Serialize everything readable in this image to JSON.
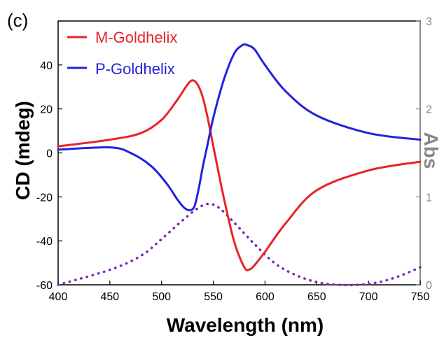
{
  "panel_label": "(c)",
  "chart_data": {
    "type": "line",
    "xlabel": "Wavelength (nm)",
    "ylabel_left": "CD (mdeg)",
    "ylabel_right": "Abs",
    "xlim": [
      400,
      750
    ],
    "ylim_left": [
      -60,
      60
    ],
    "ylim_right": [
      0,
      3
    ],
    "x_ticks": [
      400,
      450,
      500,
      550,
      600,
      650,
      700,
      750
    ],
    "y_left_ticks": [
      -60,
      -40,
      -20,
      0,
      20,
      40
    ],
    "y_right_ticks": [
      0,
      1,
      2,
      3
    ],
    "legend_position": "top-left",
    "grid": false,
    "colors": {
      "m": "#e8232a",
      "p": "#2222dd",
      "right_axis": "#888888"
    },
    "series": [
      {
        "name": "M-Goldhelix",
        "axis": "left",
        "style": "solid",
        "x": [
          400,
          450,
          480,
          500,
          515,
          525,
          530,
          535,
          540,
          545,
          550,
          560,
          570,
          580,
          585,
          590,
          600,
          620,
          650,
          700,
          750
        ],
        "y": [
          3,
          6,
          9,
          15,
          24,
          31,
          33,
          31,
          25,
          15,
          3,
          -20,
          -40,
          -52,
          -53,
          -51,
          -45,
          -32,
          -17,
          -8,
          -4
        ]
      },
      {
        "name": "P-Goldhelix",
        "axis": "left",
        "style": "solid",
        "x": [
          400,
          450,
          470,
          490,
          505,
          515,
          522,
          528,
          532,
          536,
          540,
          545,
          550,
          560,
          570,
          578,
          583,
          590,
          600,
          620,
          650,
          700,
          750
        ],
        "y": [
          1.5,
          2.5,
          0,
          -6,
          -14,
          -21,
          -25,
          -26,
          -24,
          -16,
          -6,
          5,
          16,
          33,
          45,
          49,
          49,
          47,
          40,
          28,
          17,
          9,
          6
        ]
      },
      {
        "name": "",
        "axis": "right",
        "style": "dotted",
        "color": "#7a2bb5",
        "x": [
          400,
          450,
          480,
          500,
          520,
          535,
          545,
          555,
          570,
          590,
          610,
          630,
          650,
          670,
          690,
          710,
          730,
          750
        ],
        "y": [
          0.0,
          0.17,
          0.33,
          0.52,
          0.73,
          0.87,
          0.92,
          0.88,
          0.71,
          0.46,
          0.24,
          0.11,
          0.03,
          0.0,
          0.0,
          0.03,
          0.1,
          0.2
        ]
      }
    ]
  }
}
